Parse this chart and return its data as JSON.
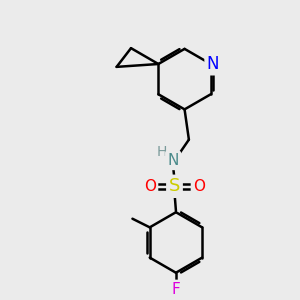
{
  "bg_color": "#ebebeb",
  "bond_color": "#000000",
  "bond_width": 1.8,
  "atom_colors": {
    "N_pyridine": "#0000ff",
    "N_sulfonamide": "#4a8a8a",
    "S": "#cccc00",
    "O": "#ff0000",
    "F": "#dd00dd",
    "C": "#000000",
    "H": "#7a9a9a"
  },
  "font_size": 11
}
